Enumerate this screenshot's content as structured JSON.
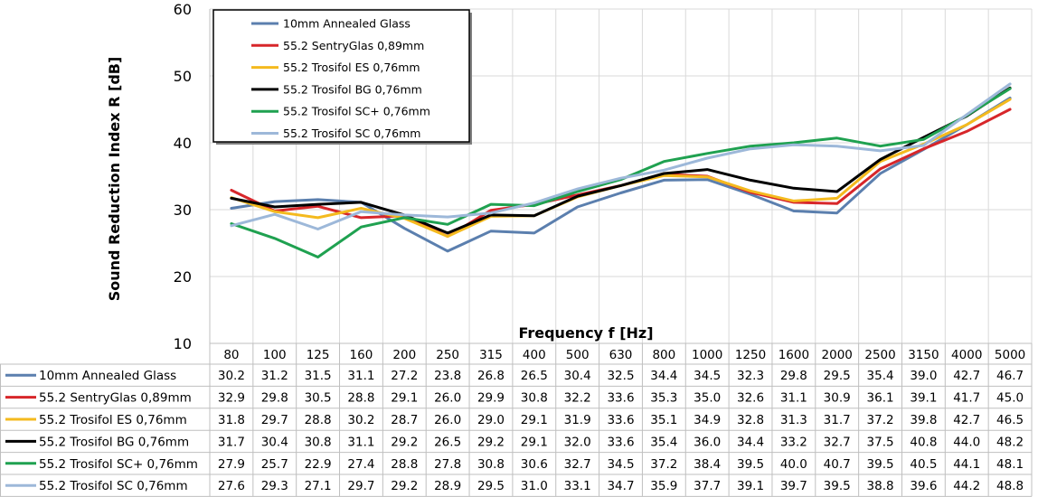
{
  "chart_data": {
    "type": "line",
    "xlabel": "Frequency f [Hz]",
    "ylabel": "Sound Reduction Index R [dB]",
    "ylim": [
      10,
      60
    ],
    "yticks": [
      10,
      20,
      30,
      40,
      50,
      60
    ],
    "grid": true,
    "legend": "top-left",
    "categories": [
      "80",
      "100",
      "125",
      "160",
      "200",
      "250",
      "315",
      "400",
      "500",
      "630",
      "800",
      "1000",
      "1250",
      "1600",
      "2000",
      "2500",
      "3150",
      "4000",
      "5000"
    ],
    "series": [
      {
        "name": "10mm Annealed Glass",
        "color": "#5B7FAE",
        "values": [
          30.2,
          31.2,
          31.5,
          31.1,
          27.2,
          23.8,
          26.8,
          26.5,
          30.4,
          32.5,
          34.4,
          34.5,
          32.3,
          29.8,
          29.5,
          35.4,
          39.0,
          42.7,
          46.7
        ]
      },
      {
        "name": "55.2 SentryGlas 0,89mm",
        "color": "#D7262A",
        "values": [
          32.9,
          29.8,
          30.5,
          28.8,
          29.1,
          26.0,
          29.9,
          30.8,
          32.2,
          33.6,
          35.3,
          35.0,
          32.6,
          31.1,
          30.9,
          36.1,
          39.1,
          41.7,
          45.0
        ]
      },
      {
        "name": "55.2 Trosifol ES 0,76mm",
        "color": "#F4BA1E",
        "values": [
          31.8,
          29.7,
          28.8,
          30.2,
          28.7,
          26.0,
          29.0,
          29.1,
          31.9,
          33.6,
          35.1,
          34.9,
          32.8,
          31.3,
          31.7,
          37.2,
          39.8,
          42.7,
          46.5
        ]
      },
      {
        "name": "55.2 Trosifol BG 0,76mm",
        "color": "#000000",
        "values": [
          31.7,
          30.4,
          30.8,
          31.1,
          29.2,
          26.5,
          29.2,
          29.1,
          32.0,
          33.6,
          35.4,
          36.0,
          34.4,
          33.2,
          32.7,
          37.5,
          40.8,
          44.0,
          48.2
        ]
      },
      {
        "name": "55.2 Trosifol SC+ 0,76mm",
        "color": "#1FA150",
        "values": [
          27.9,
          25.7,
          22.9,
          27.4,
          28.8,
          27.8,
          30.8,
          30.6,
          32.7,
          34.5,
          37.2,
          38.4,
          39.5,
          40.0,
          40.7,
          39.5,
          40.5,
          44.1,
          48.1
        ]
      },
      {
        "name": "55.2 Trosifol SC 0,76mm",
        "color": "#9DB8D9",
        "values": [
          27.6,
          29.3,
          27.1,
          29.7,
          29.2,
          28.9,
          29.5,
          31.0,
          33.1,
          34.7,
          35.9,
          37.7,
          39.1,
          39.7,
          39.5,
          38.8,
          39.6,
          44.2,
          48.8
        ]
      }
    ]
  }
}
